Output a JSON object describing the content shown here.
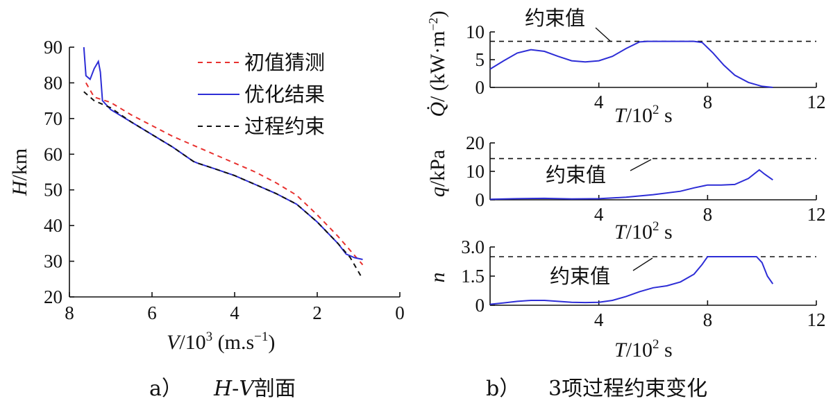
{
  "chart_data": [
    {
      "type": "line",
      "caption_letter": "a）",
      "caption_text": "H-V剖面",
      "xlabel": "V/10³ (m.s⁻¹)",
      "ylabel": "H/km",
      "xlim": [
        8,
        0
      ],
      "ylim": [
        20,
        90
      ],
      "xticks": [
        8,
        6,
        4,
        2,
        0
      ],
      "yticks": [
        20,
        30,
        40,
        50,
        60,
        70,
        80,
        90
      ],
      "legend": {
        "position": "top-right"
      },
      "series": [
        {
          "name": "初值猜测",
          "color": "#e8312f",
          "dash": "dashed",
          "x": [
            7.6,
            7.4,
            7.0,
            6.5,
            6.0,
            5.5,
            5.0,
            4.5,
            4.0,
            3.5,
            3.0,
            2.5,
            2.0,
            1.5,
            1.2,
            0.9
          ],
          "y": [
            80,
            76,
            74.5,
            71,
            68,
            65,
            62.5,
            60,
            57.5,
            55,
            52,
            48.5,
            43,
            37,
            33,
            29
          ]
        },
        {
          "name": "优化结果",
          "color": "#2d2dd6",
          "dash": "solid",
          "x": [
            7.65,
            7.6,
            7.5,
            7.4,
            7.3,
            7.25,
            7.2,
            7.0,
            6.5,
            6.0,
            5.5,
            5.0,
            4.9,
            4.5,
            4.0,
            3.5,
            3.0,
            2.5,
            2.0,
            1.5,
            1.3,
            1.1,
            0.9
          ],
          "y": [
            90,
            82,
            81,
            84,
            86,
            83,
            75,
            72.5,
            69,
            65.5,
            62,
            58,
            57.5,
            56,
            54,
            51.5,
            49,
            46,
            41,
            35,
            32,
            31,
            30.5
          ]
        },
        {
          "name": "过程约束",
          "color": "#111111",
          "dash": "dashed",
          "x": [
            7.65,
            7.4,
            7.0,
            6.5,
            6.0,
            5.5,
            5.0,
            4.9,
            4.5,
            4.0,
            3.5,
            3.0,
            2.5,
            2.0,
            1.5,
            1.2,
            0.9
          ],
          "y": [
            77.5,
            75,
            73,
            69,
            65.5,
            62,
            58,
            57.5,
            56,
            54,
            51.5,
            49,
            46,
            41,
            35,
            31,
            25
          ]
        }
      ]
    },
    {
      "type": "line",
      "caption_letter": "b）",
      "caption_text": "3项过程约束变化",
      "panels": [
        {
          "name": "Q",
          "ylabel": "Q̇/(kW·m⁻²)",
          "xlabel": "T/10² s",
          "xlim": [
            0,
            12
          ],
          "ylim": [
            0,
            10
          ],
          "xticks": [
            4,
            8,
            12
          ],
          "yticks": [
            0,
            5,
            10
          ],
          "constraint_value": 8.3,
          "annotation": "约束值",
          "series": [
            {
              "color": "#2d2dd6",
              "x": [
                0,
                0.5,
                1.0,
                1.5,
                2.0,
                2.5,
                3.0,
                3.5,
                4.0,
                4.5,
                5.0,
                5.5,
                5.8,
                6.5,
                7.0,
                7.5,
                7.8,
                8.2,
                8.6,
                9.0,
                9.5,
                10.0,
                10.4
              ],
              "y": [
                3.3,
                4.8,
                6.2,
                6.8,
                6.5,
                5.6,
                4.8,
                4.6,
                4.8,
                5.6,
                7.0,
                8.2,
                8.3,
                8.3,
                8.3,
                8.3,
                8.1,
                6.2,
                4.0,
                2.2,
                0.9,
                0.2,
                0.0
              ]
            }
          ]
        },
        {
          "name": "q",
          "ylabel": "q/kPa",
          "xlabel": "T/10² s",
          "xlim": [
            0,
            12
          ],
          "ylim": [
            0,
            20
          ],
          "xticks": [
            4,
            8,
            12
          ],
          "yticks": [
            0,
            10,
            20
          ],
          "constraint_value": 14.5,
          "annotation": "约束值",
          "series": [
            {
              "color": "#2d2dd6",
              "x": [
                0,
                1.0,
                2.0,
                3.0,
                4.0,
                5.0,
                6.0,
                7.0,
                7.5,
                8.0,
                8.5,
                9.0,
                9.5,
                9.9,
                10.1,
                10.4
              ],
              "y": [
                0.2,
                0.4,
                0.5,
                0.3,
                0.4,
                0.9,
                1.8,
                3.0,
                4.2,
                5.2,
                5.2,
                5.4,
                7.5,
                10.5,
                9.0,
                7.0
              ]
            }
          ]
        },
        {
          "name": "n",
          "ylabel": "n",
          "xlabel": "T/10² s",
          "xlim": [
            0,
            12
          ],
          "ylim": [
            0,
            3.0
          ],
          "xticks": [
            4,
            8,
            12
          ],
          "yticks": [
            0,
            1.5,
            3.0
          ],
          "ytick_labels": [
            "0",
            "1.5",
            "3.0"
          ],
          "constraint_value": 2.5,
          "annotation": "约束值",
          "series": [
            {
              "color": "#2d2dd6",
              "x": [
                0,
                0.5,
                1.0,
                1.5,
                2.0,
                2.5,
                3.0,
                3.5,
                4.0,
                4.5,
                5.0,
                5.5,
                6.0,
                6.5,
                7.0,
                7.5,
                7.8,
                8.0,
                8.5,
                9.0,
                9.5,
                9.8,
                10.0,
                10.2,
                10.4
              ],
              "y": [
                0.05,
                0.12,
                0.2,
                0.25,
                0.25,
                0.2,
                0.15,
                0.14,
                0.15,
                0.25,
                0.45,
                0.7,
                0.9,
                1.0,
                1.2,
                1.6,
                2.1,
                2.5,
                2.5,
                2.5,
                2.5,
                2.5,
                2.2,
                1.5,
                1.1
              ]
            }
          ]
        }
      ]
    }
  ]
}
